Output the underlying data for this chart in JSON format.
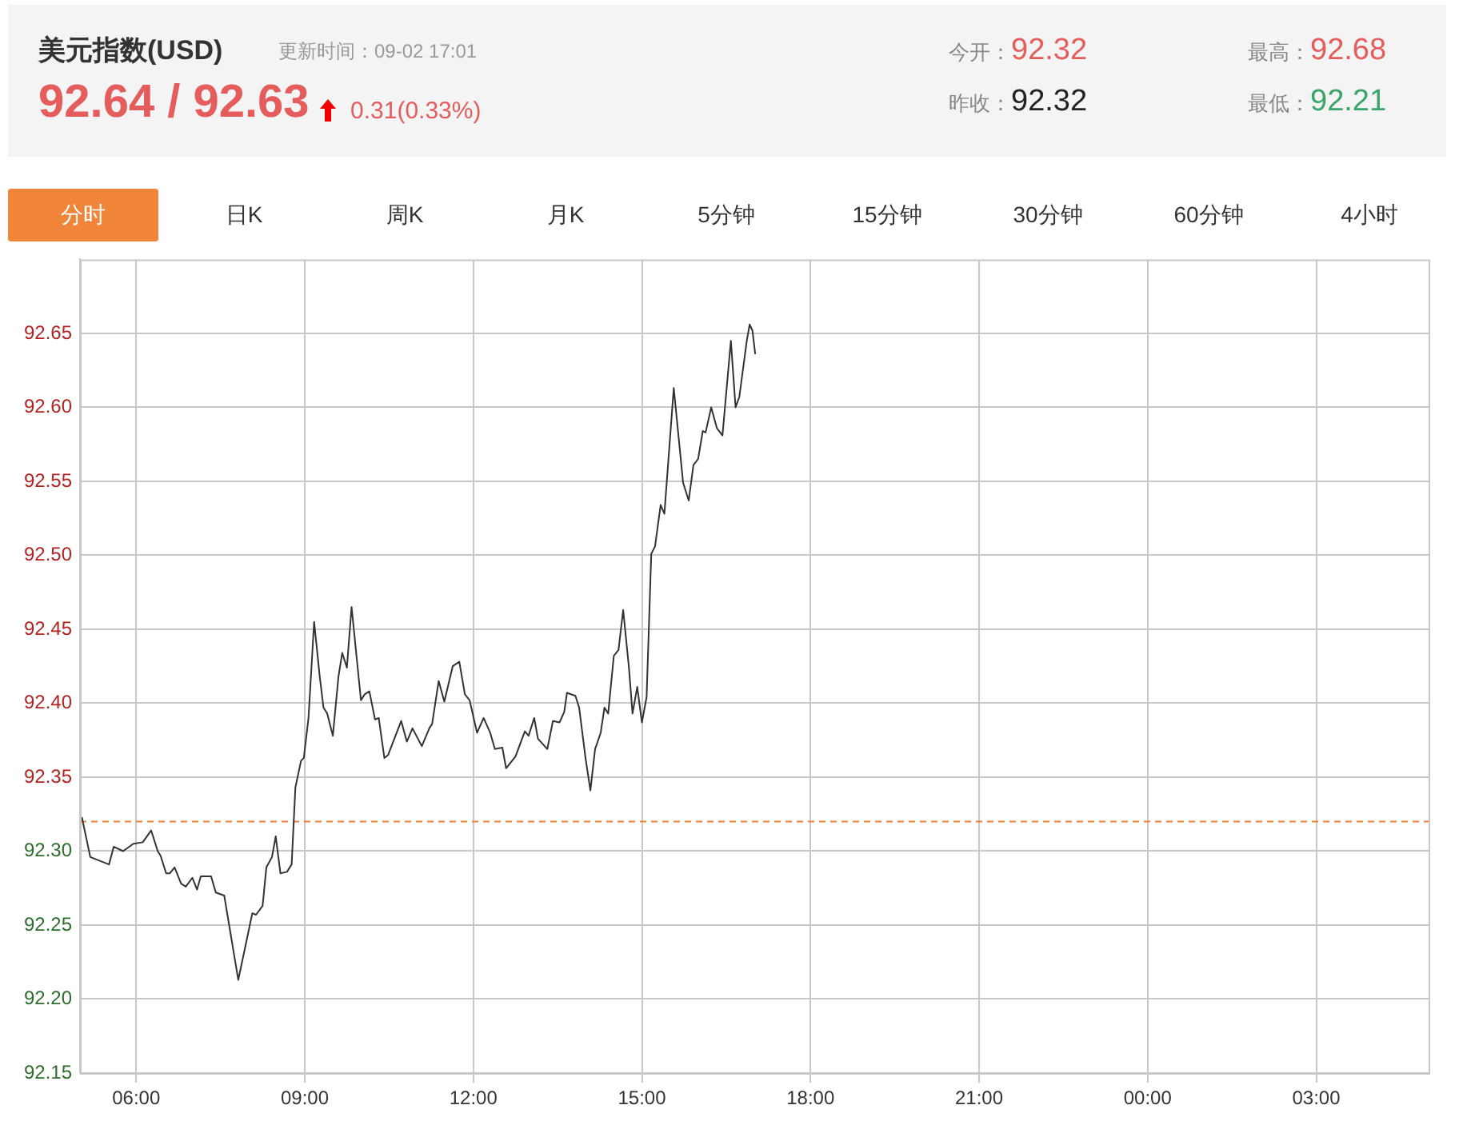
{
  "chart_data": {
    "type": "line",
    "title": "美元指数(USD)",
    "subtitle": "更新时间：09-02 17:01",
    "annotations": [
      "92.64 / 92.63",
      "0.31(0.33%)",
      "今开：92.32",
      "昨收：92.32",
      "最高：92.68",
      "最低：92.21",
      "分时",
      "日K",
      "周K",
      "月K",
      "5分钟",
      "15分钟",
      "30分钟",
      "60分钟",
      "4小时"
    ],
    "x": [
      "--09-02T05:02",
      "--09-02T05:11",
      "--09-02T05:31",
      "--09-02T05:36",
      "--09-02T05:46",
      "--09-02T05:57",
      "--09-02T06:07",
      "--09-02T06:16",
      "--09-02T06:23",
      "--09-02T06:26",
      "--09-02T06:32",
      "--09-02T06:36",
      "--09-02T06:41",
      "--09-02T06:48",
      "--09-02T06:53",
      "--09-02T07:00",
      "--09-02T07:05",
      "--09-02T07:09",
      "--09-02T07:20",
      "--09-02T07:25",
      "--09-02T07:34",
      "--09-02T07:49",
      "--09-02T08:04",
      "--09-02T08:08",
      "--09-02T08:15",
      "--09-02T08:19",
      "--09-02T08:25",
      "--09-02T08:29",
      "--09-02T08:34",
      "--09-02T08:41",
      "--09-02T08:46",
      "--09-02T08:50",
      "--09-02T08:56",
      "--09-02T08:59",
      "--09-02T09:04",
      "--09-02T09:10",
      "--09-02T09:16",
      "--09-02T09:20",
      "--09-02T09:24",
      "--09-02T09:30",
      "--09-02T09:36",
      "--09-02T09:40",
      "--09-02T09:45",
      "--09-02T09:50",
      "--09-02T10:00",
      "--09-02T10:04",
      "--09-02T10:09",
      "--09-02T10:15",
      "--09-02T10:19",
      "--09-02T10:25",
      "--09-02T10:29",
      "--09-02T10:43",
      "--09-02T10:49",
      "--09-02T10:55",
      "--09-02T11:05",
      "--09-02T11:13",
      "--09-02T11:16",
      "--09-02T11:23",
      "--09-02T11:29",
      "--09-02T11:38",
      "--09-02T11:45",
      "--09-02T11:51",
      "--09-02T11:56",
      "--09-02T12:04",
      "--09-02T12:11",
      "--09-02T12:18",
      "--09-02T12:23",
      "--09-02T12:31",
      "--09-02T12:35",
      "--09-02T12:45",
      "--09-02T12:55",
      "--09-02T12:59",
      "--09-02T13:05",
      "--09-02T13:09",
      "--09-02T13:19",
      "--09-02T13:25",
      "--09-02T13:32",
      "--09-02T13:37",
      "--09-02T13:40",
      "--09-02T13:49",
      "--09-02T13:53",
      "--09-02T14:00",
      "--09-02T14:05",
      "--09-02T14:10",
      "--09-02T14:16",
      "--09-02T14:20",
      "--09-02T14:24",
      "--09-02T14:30",
      "--09-02T14:35",
      "--09-02T14:40",
      "--09-02T14:46",
      "--09-02T14:50",
      "--09-02T14:55",
      "--09-02T15:00",
      "--09-02T15:05",
      "--09-02T15:10",
      "--09-02T15:14",
      "--09-02T15:20",
      "--09-02T15:24",
      "--09-02T15:34",
      "--09-02T15:44",
      "--09-02T15:50",
      "--09-02T15:55",
      "--09-02T16:00",
      "--09-02T16:05",
      "--09-02T16:08",
      "--09-02T16:14",
      "--09-02T16:20",
      "--09-02T16:26",
      "--09-02T16:35",
      "--09-02T16:40",
      "--09-02T16:44",
      "--09-02T16:52",
      "--09-02T16:55",
      "--09-02T16:58",
      "--09-02T17:01"
    ],
    "series": [
      {
        "color": "#333333",
        "values": [
          92.323,
          92.296,
          92.291,
          92.303,
          92.3,
          92.305,
          92.306,
          92.314,
          92.3,
          92.297,
          92.285,
          92.285,
          92.289,
          92.278,
          92.276,
          92.282,
          92.274,
          92.283,
          92.283,
          92.272,
          92.27,
          92.213,
          92.258,
          92.257,
          92.263,
          92.289,
          92.296,
          92.31,
          92.285,
          92.286,
          92.291,
          92.343,
          92.361,
          92.363,
          92.39,
          92.455,
          92.418,
          92.397,
          92.393,
          92.378,
          92.418,
          92.434,
          92.424,
          92.465,
          92.402,
          92.406,
          92.408,
          92.389,
          92.39,
          92.363,
          92.365,
          92.388,
          92.374,
          92.383,
          92.371,
          92.383,
          92.386,
          92.415,
          92.401,
          92.425,
          92.428,
          92.406,
          92.402,
          92.38,
          92.39,
          92.38,
          92.369,
          92.37,
          92.356,
          92.364,
          92.381,
          92.378,
          92.39,
          92.376,
          92.369,
          92.388,
          92.387,
          92.394,
          92.407,
          92.405,
          92.397,
          92.362,
          92.341,
          92.369,
          92.38,
          92.397,
          92.393,
          92.432,
          92.436,
          92.463,
          92.425,
          92.393,
          92.411,
          92.387,
          92.404,
          92.501,
          92.506,
          92.534,
          92.528,
          92.613,
          92.549,
          92.537,
          92.561,
          92.565,
          92.584,
          92.583,
          92.6,
          92.586,
          92.581,
          92.645,
          92.6,
          92.607,
          92.645,
          92.656,
          92.652,
          92.636
        ]
      }
    ],
    "xlim": [
      "--09-02T05:00",
      "--09-03T05:00"
    ],
    "xticks": [
      {
        "value": "--09-02T06:00",
        "label": "06:00"
      },
      {
        "value": "--09-02T09:00",
        "label": "09:00"
      },
      {
        "value": "--09-02T12:00",
        "label": "12:00"
      },
      {
        "value": "--09-02T15:00",
        "label": "15:00"
      },
      {
        "value": "--09-02T18:00",
        "label": "18:00"
      },
      {
        "value": "--09-02T21:00",
        "label": "21:00"
      },
      {
        "value": "--09-03T00:00",
        "label": "00:00"
      },
      {
        "value": "--09-03T03:00",
        "label": "03:00"
      }
    ],
    "ylim": [
      92.15,
      92.7
    ],
    "yticks": [
      92.15,
      {
        "value": 92.2,
        "label": "92.20"
      },
      92.25,
      {
        "value": 92.3,
        "label": "92.30"
      },
      92.35,
      {
        "value": 92.4,
        "label": "92.40"
      },
      92.45,
      {
        "value": 92.5,
        "label": "92.50"
      },
      92.55,
      {
        "value": 92.6,
        "label": "92.60"
      },
      92.65
    ],
    "ref_lines": [
      {
        "axis": "y",
        "value": 92.32,
        "color": "#e8803a",
        "line_style": "dashed"
      }
    ],
    "grid": true,
    "marker": "none",
    "line_style": "solid",
    "legend": false
  }
}
